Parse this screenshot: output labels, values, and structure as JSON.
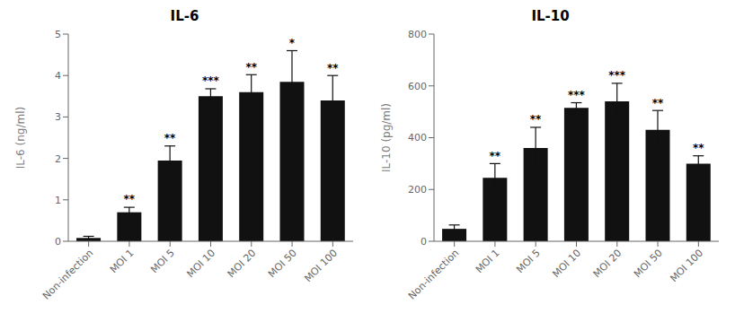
{
  "chart_data": [
    {
      "type": "bar",
      "title": "IL-6",
      "ylabel": "IL-6 (ng/ml)",
      "categories": [
        "Non-infection",
        "MOI 1",
        "MOI 5",
        "MOI 10",
        "MOI 20",
        "MOI 50",
        "MOI 100"
      ],
      "values": [
        0.08,
        0.7,
        1.95,
        3.5,
        3.6,
        3.85,
        3.4
      ],
      "errors": [
        0.04,
        0.12,
        0.35,
        0.18,
        0.42,
        0.75,
        0.6
      ],
      "annotations": [
        null,
        "**",
        "**",
        "***",
        "**",
        "*",
        "**"
      ],
      "color": "#111111",
      "ylim": [
        0,
        5
      ],
      "yticks": [
        0,
        1,
        2,
        3,
        4,
        5
      ],
      "grid": false
    },
    {
      "type": "bar",
      "title": "IL-10",
      "ylabel": "IL-10 (pg/ml)",
      "categories": [
        "Non-infection",
        "MOI 1",
        "MOI 5",
        "MOI 10",
        "MOI 20",
        "MOI 50",
        "MOI 100"
      ],
      "values": [
        48,
        245,
        360,
        515,
        540,
        430,
        300
      ],
      "errors": [
        15,
        55,
        80,
        20,
        70,
        75,
        30
      ],
      "annotations": [
        null,
        "**",
        "**",
        "***",
        "***",
        "**",
        "**"
      ],
      "color": "#111111",
      "ylim": [
        0,
        800
      ],
      "yticks": [
        0,
        200,
        400,
        600,
        800
      ],
      "grid": false
    }
  ]
}
